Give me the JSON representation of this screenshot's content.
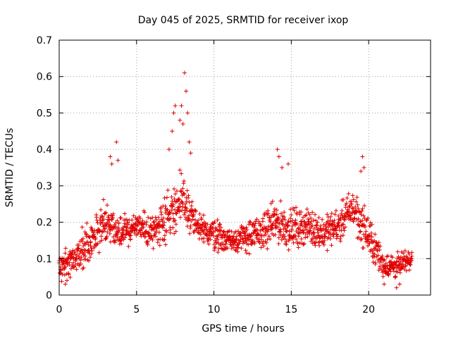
{
  "chart_data": {
    "type": "scatter",
    "title": "Day 045 of 2025, SRMTID for receiver ixop",
    "xlabel": "GPS time / hours",
    "ylabel": "SRMTID / TECUs",
    "xlim": [
      0,
      24
    ],
    "ylim": [
      0,
      0.7
    ],
    "xticks": [
      "0",
      "5",
      "10",
      "15",
      "20"
    ],
    "yticks": [
      "0",
      "0.1",
      "0.2",
      "0.3",
      "0.4",
      "0.5",
      "0.6",
      "0.7"
    ],
    "grid": true,
    "marker": "plus",
    "series": [
      {
        "name": "SRMTID",
        "color": "#e00000",
        "profile": [
          [
            0.0,
            0.08,
            0.03
          ],
          [
            1.0,
            0.1,
            0.04
          ],
          [
            2.0,
            0.15,
            0.05
          ],
          [
            3.0,
            0.2,
            0.05
          ],
          [
            4.0,
            0.17,
            0.04
          ],
          [
            5.0,
            0.19,
            0.04
          ],
          [
            6.0,
            0.17,
            0.04
          ],
          [
            7.0,
            0.22,
            0.06
          ],
          [
            8.0,
            0.26,
            0.07
          ],
          [
            9.0,
            0.18,
            0.04
          ],
          [
            10.0,
            0.17,
            0.04
          ],
          [
            11.0,
            0.15,
            0.03
          ],
          [
            12.0,
            0.16,
            0.04
          ],
          [
            13.0,
            0.17,
            0.04
          ],
          [
            14.0,
            0.2,
            0.05
          ],
          [
            15.0,
            0.18,
            0.05
          ],
          [
            16.0,
            0.19,
            0.04
          ],
          [
            17.0,
            0.17,
            0.04
          ],
          [
            18.0,
            0.19,
            0.04
          ],
          [
            19.0,
            0.24,
            0.05
          ],
          [
            20.0,
            0.16,
            0.05
          ],
          [
            21.0,
            0.08,
            0.03
          ],
          [
            22.0,
            0.08,
            0.03
          ],
          [
            22.8,
            0.1,
            0.02
          ]
        ],
        "points": [
          [
            3.3,
            0.38
          ],
          [
            3.4,
            0.36
          ],
          [
            3.7,
            0.42
          ],
          [
            3.8,
            0.37
          ],
          [
            7.1,
            0.4
          ],
          [
            7.3,
            0.45
          ],
          [
            7.4,
            0.5
          ],
          [
            7.5,
            0.52
          ],
          [
            7.8,
            0.48
          ],
          [
            7.9,
            0.52
          ],
          [
            8.0,
            0.47
          ],
          [
            8.1,
            0.61
          ],
          [
            8.2,
            0.56
          ],
          [
            8.3,
            0.5
          ],
          [
            8.4,
            0.42
          ],
          [
            8.5,
            0.39
          ],
          [
            14.1,
            0.4
          ],
          [
            14.2,
            0.38
          ],
          [
            14.4,
            0.35
          ],
          [
            14.8,
            0.36
          ],
          [
            19.6,
            0.38
          ],
          [
            19.7,
            0.35
          ],
          [
            19.5,
            0.34
          ],
          [
            0.4,
            0.03
          ],
          [
            0.5,
            0.04
          ],
          [
            21.0,
            0.03
          ],
          [
            21.8,
            0.02
          ],
          [
            22.0,
            0.03
          ]
        ]
      }
    ]
  }
}
